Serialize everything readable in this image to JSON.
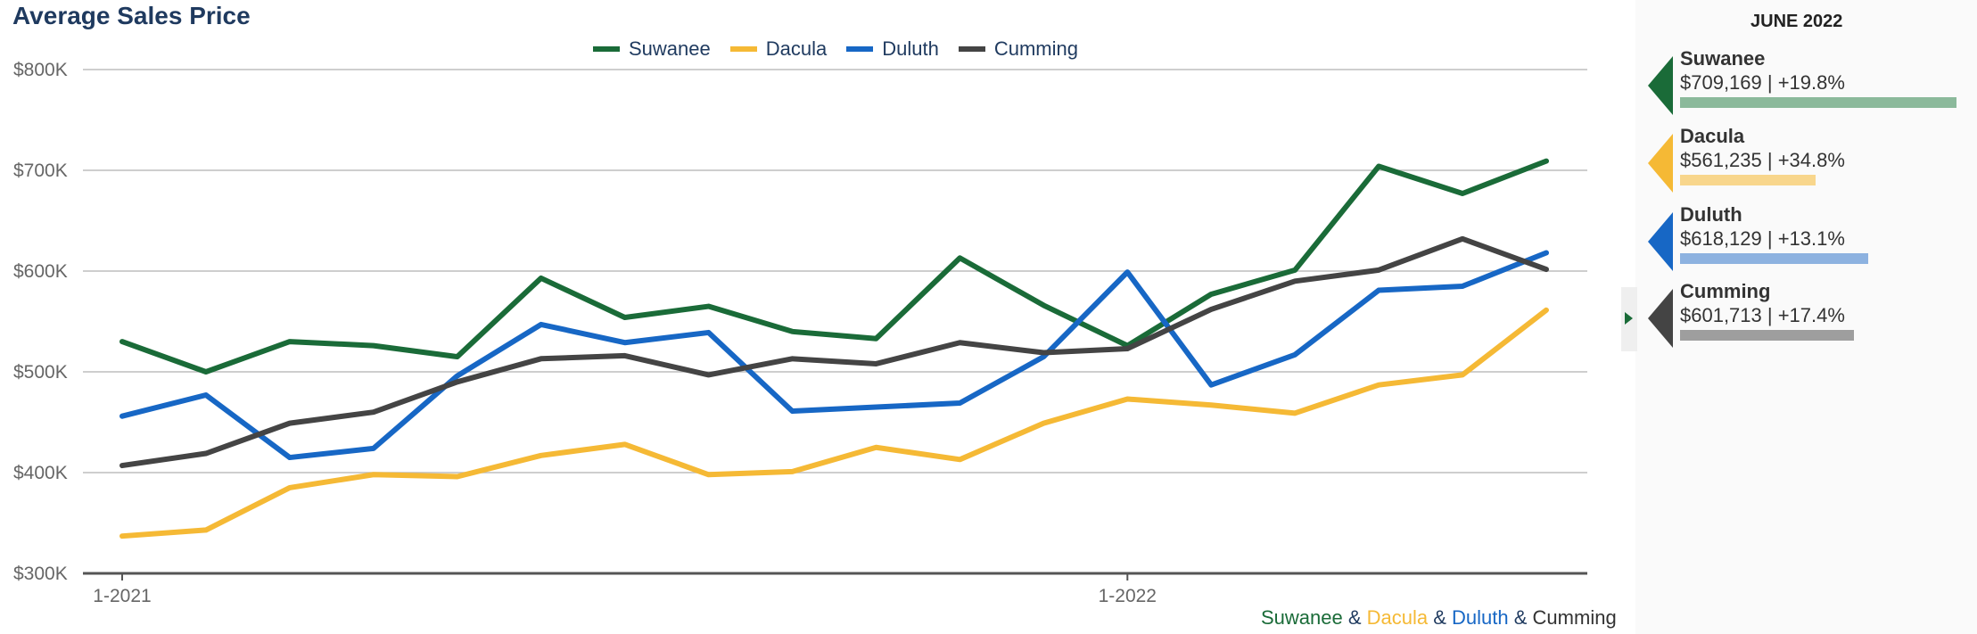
{
  "title": "Average Sales Price",
  "panel": {
    "month": "JUNE 2022",
    "cards": [
      {
        "name": "Suwanee",
        "value": "$709,169 | +19.8%",
        "color": "#1a6b38",
        "bar_color": "#8bb99b",
        "bar_fraction": 1.0
      },
      {
        "name": "Dacula",
        "value": "$561,235 | +34.8%",
        "color": "#f5b935",
        "bar_color": "#f8d68c",
        "bar_fraction": 0.49
      },
      {
        "name": "Duluth",
        "value": "$618,129 | +13.1%",
        "color": "#1767c5",
        "bar_color": "#8db2e0",
        "bar_fraction": 0.68
      },
      {
        "name": "Cumming",
        "value": "$601,713 | +17.4%",
        "color": "#444444",
        "bar_color": "#9e9e9e",
        "bar_fraction": 0.63
      }
    ]
  },
  "footer": {
    "parts": [
      "Suwanee",
      " & ",
      "Dacula",
      " & ",
      "Duluth",
      " & ",
      "Cumming"
    ]
  },
  "chart_data": {
    "type": "line",
    "x": [
      "1-2021",
      "2-2021",
      "3-2021",
      "4-2021",
      "5-2021",
      "6-2021",
      "7-2021",
      "8-2021",
      "9-2021",
      "10-2021",
      "11-2021",
      "12-2021",
      "1-2022",
      "2-2022",
      "3-2022",
      "4-2022",
      "5-2022",
      "6-2022"
    ],
    "x_tick_labels": [
      {
        "label": "1-2021",
        "index": 0
      },
      {
        "label": "1-2022",
        "index": 12
      }
    ],
    "y_ticks": [
      {
        "value": 300000,
        "label": "$300K"
      },
      {
        "value": 400000,
        "label": "$400K"
      },
      {
        "value": 500000,
        "label": "$500K"
      },
      {
        "value": 600000,
        "label": "$600K"
      },
      {
        "value": 700000,
        "label": "$700K"
      },
      {
        "value": 800000,
        "label": "$800K"
      }
    ],
    "ylim": [
      300000,
      800000
    ],
    "grid": true,
    "legend_position": "top-center",
    "series": [
      {
        "name": "Suwanee",
        "color": "#1a6b38",
        "values": [
          530000,
          500000,
          530000,
          526000,
          515000,
          593000,
          554000,
          565000,
          540000,
          533000,
          613000,
          566000,
          526000,
          577000,
          601000,
          704000,
          677000,
          709169
        ]
      },
      {
        "name": "Dacula",
        "color": "#f5b935",
        "values": [
          337000,
          343000,
          385000,
          398000,
          396000,
          417000,
          428000,
          398000,
          401000,
          425000,
          413000,
          449000,
          473000,
          467000,
          459000,
          487000,
          497000,
          561235
        ]
      },
      {
        "name": "Duluth",
        "color": "#1767c5",
        "values": [
          456000,
          477000,
          415000,
          424000,
          496000,
          547000,
          529000,
          539000,
          461000,
          465000,
          469000,
          515000,
          599000,
          487000,
          517000,
          581000,
          585000,
          618129
        ]
      },
      {
        "name": "Cumming",
        "color": "#444444",
        "values": [
          407000,
          419000,
          449000,
          460000,
          490000,
          513000,
          516000,
          497000,
          513000,
          508000,
          529000,
          519000,
          523000,
          562000,
          590000,
          601000,
          632000,
          601713
        ]
      }
    ]
  }
}
